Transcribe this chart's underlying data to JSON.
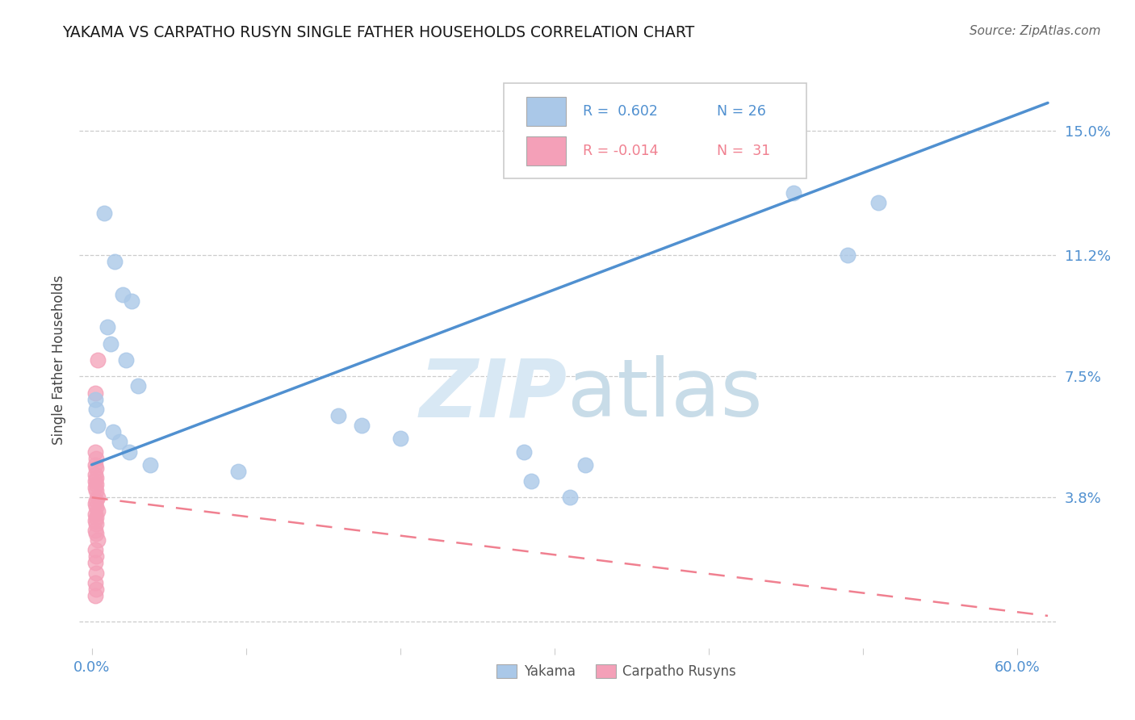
{
  "title": "YAKAMA VS CARPATHO RUSYN SINGLE FATHER HOUSEHOLDS CORRELATION CHART",
  "source": "Source: ZipAtlas.com",
  "ylabel": "Single Father Households",
  "xlim_min": -0.008,
  "xlim_max": 0.625,
  "ylim_min": -0.008,
  "ylim_max": 0.168,
  "yakama_color": "#aac8e8",
  "carpatho_color": "#f4a0b8",
  "line_blue": "#5090d0",
  "line_pink": "#f08090",
  "watermark_color": "#d8e8f4",
  "right_ytick_vals": [
    0.0,
    0.038,
    0.075,
    0.112,
    0.15
  ],
  "right_ytick_labels": [
    "",
    "3.8%",
    "7.5%",
    "11.2%",
    "15.0%"
  ],
  "xtick_vals": [
    0.0,
    0.1,
    0.2,
    0.3,
    0.4,
    0.5,
    0.6
  ],
  "xtick_labels": [
    "0.0%",
    "",
    "",
    "",
    "",
    "",
    "60.0%"
  ],
  "legend_r1": "R =  0.602",
  "legend_n1": "N = 26",
  "legend_r2": "R = -0.014",
  "legend_n2": "N =  31",
  "blue_line_x0": 0.0,
  "blue_line_y0": 0.048,
  "blue_line_x1": 0.6,
  "blue_line_y1": 0.155,
  "pink_line_x0": 0.0,
  "pink_line_y0": 0.038,
  "pink_line_x1": 0.6,
  "pink_line_y1": 0.003,
  "yakama_x": [
    0.008,
    0.015,
    0.02,
    0.026,
    0.01,
    0.012,
    0.022,
    0.03,
    0.002,
    0.003,
    0.004,
    0.014,
    0.018,
    0.024,
    0.038,
    0.095,
    0.28,
    0.32,
    0.285,
    0.31,
    0.455,
    0.51,
    0.49,
    0.16,
    0.175,
    0.2
  ],
  "yakama_y": [
    0.125,
    0.11,
    0.1,
    0.098,
    0.09,
    0.085,
    0.08,
    0.072,
    0.068,
    0.065,
    0.06,
    0.058,
    0.055,
    0.052,
    0.048,
    0.046,
    0.052,
    0.048,
    0.043,
    0.038,
    0.131,
    0.128,
    0.112,
    0.063,
    0.06,
    0.056
  ],
  "carpatho_x": [
    0.002,
    0.003,
    0.002,
    0.003,
    0.002,
    0.003,
    0.002,
    0.003,
    0.002,
    0.003,
    0.004,
    0.003,
    0.002,
    0.003,
    0.004,
    0.002,
    0.003,
    0.002,
    0.003,
    0.002,
    0.003,
    0.004,
    0.002,
    0.003,
    0.002,
    0.003,
    0.002,
    0.003,
    0.002,
    0.004,
    0.002
  ],
  "carpatho_y": [
    0.052,
    0.05,
    0.048,
    0.047,
    0.045,
    0.044,
    0.043,
    0.042,
    0.041,
    0.04,
    0.038,
    0.037,
    0.036,
    0.035,
    0.034,
    0.033,
    0.032,
    0.031,
    0.03,
    0.028,
    0.027,
    0.025,
    0.022,
    0.02,
    0.018,
    0.015,
    0.012,
    0.01,
    0.008,
    0.08,
    0.07
  ]
}
